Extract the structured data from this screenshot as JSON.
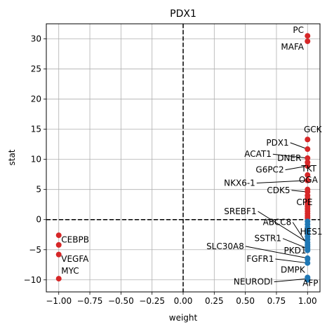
{
  "chart_data": {
    "type": "scatter",
    "title": "PDX1",
    "xlabel": "weight",
    "ylabel": "stat",
    "xlim": [
      -1.1,
      1.1
    ],
    "ylim": [
      -12,
      32.5
    ],
    "xticks": [
      -1.0,
      -0.75,
      -0.5,
      -0.25,
      0.0,
      0.25,
      0.5,
      0.75,
      1.0
    ],
    "xtick_labels": [
      "−1.00",
      "−0.75",
      "−0.50",
      "−0.25",
      "0.00",
      "0.25",
      "0.50",
      "0.75",
      "1.00"
    ],
    "yticks": [
      -10,
      -5,
      0,
      5,
      10,
      15,
      20,
      25,
      30
    ],
    "ytick_labels": [
      "−10",
      "−5",
      "0",
      "5",
      "10",
      "15",
      "20",
      "25",
      "30"
    ],
    "grid": true,
    "reference_lines": [
      {
        "axis": "x",
        "value": 0
      },
      {
        "axis": "y",
        "value": 0
      }
    ],
    "colors": {
      "positive": "#d62728",
      "negative": "#1f77b4"
    },
    "points": [
      {
        "x": 1.0,
        "y": 30.5,
        "label": "PC",
        "color": "positive"
      },
      {
        "x": 1.0,
        "y": 29.6,
        "label": "MAFA",
        "color": "positive"
      },
      {
        "x": 1.0,
        "y": 13.3,
        "label": "GCK",
        "color": "positive"
      },
      {
        "x": 1.0,
        "y": 11.7,
        "label": "PDX1",
        "color": "positive"
      },
      {
        "x": 1.0,
        "y": 10.2,
        "label": "ACAT1",
        "color": "positive"
      },
      {
        "x": 1.0,
        "y": 9.5,
        "label": "DNER",
        "color": "positive"
      },
      {
        "x": 1.0,
        "y": 8.9,
        "label": "G6PC2",
        "color": "positive"
      },
      {
        "x": 1.0,
        "y": 7.4,
        "label": "TKT",
        "color": "positive"
      },
      {
        "x": 1.0,
        "y": 6.5,
        "label": "NKX6-1",
        "color": "positive"
      },
      {
        "x": 1.0,
        "y": 5.0,
        "label": "OGA",
        "color": "positive"
      },
      {
        "x": 1.0,
        "y": 4.6,
        "label": "CDK5",
        "color": "positive"
      },
      {
        "x": 1.0,
        "y": 4.0,
        "label": "",
        "color": "positive"
      },
      {
        "x": 1.0,
        "y": 3.5,
        "label": "",
        "color": "positive"
      },
      {
        "x": 1.0,
        "y": 3.0,
        "label": "",
        "color": "positive"
      },
      {
        "x": 1.0,
        "y": 2.6,
        "label": "",
        "color": "positive"
      },
      {
        "x": 1.0,
        "y": 2.2,
        "label": "CPE",
        "color": "positive"
      },
      {
        "x": 1.0,
        "y": 1.8,
        "label": "",
        "color": "positive"
      },
      {
        "x": 1.0,
        "y": 1.4,
        "label": "",
        "color": "positive"
      },
      {
        "x": 1.0,
        "y": 1.0,
        "label": "",
        "color": "positive"
      },
      {
        "x": 1.0,
        "y": 0.6,
        "label": "",
        "color": "positive"
      },
      {
        "x": 1.0,
        "y": 0.3,
        "label": "",
        "color": "positive"
      },
      {
        "x": 1.0,
        "y": -0.3,
        "label": "",
        "color": "negative"
      },
      {
        "x": 1.0,
        "y": -0.8,
        "label": "",
        "color": "negative"
      },
      {
        "x": 1.0,
        "y": -1.3,
        "label": "",
        "color": "negative"
      },
      {
        "x": 1.0,
        "y": -1.8,
        "label": "",
        "color": "negative"
      },
      {
        "x": 1.0,
        "y": -2.3,
        "label": "",
        "color": "negative"
      },
      {
        "x": 1.0,
        "y": -2.8,
        "label": "",
        "color": "negative"
      },
      {
        "x": 1.0,
        "y": -3.3,
        "label": "",
        "color": "negative"
      },
      {
        "x": 1.0,
        "y": -3.8,
        "label": "SREBF1",
        "color": "negative"
      },
      {
        "x": 1.0,
        "y": -4.2,
        "label": "ABCC8",
        "color": "negative"
      },
      {
        "x": 1.0,
        "y": -4.5,
        "label": "HES1",
        "color": "negative"
      },
      {
        "x": 1.0,
        "y": -4.8,
        "label": "SSTR1",
        "color": "negative"
      },
      {
        "x": 1.0,
        "y": -5.1,
        "label": "",
        "color": "negative"
      },
      {
        "x": 1.0,
        "y": -6.4,
        "label": "SLC30A8",
        "color": "negative"
      },
      {
        "x": 1.0,
        "y": -6.6,
        "label": "PKD1",
        "color": "negative"
      },
      {
        "x": 1.0,
        "y": -7.2,
        "label": "FGFR1",
        "color": "negative"
      },
      {
        "x": 1.0,
        "y": -9.6,
        "label": "DMPK",
        "color": "negative"
      },
      {
        "x": 1.0,
        "y": -9.8,
        "label": "NEURODl",
        "color": "negative"
      },
      {
        "x": 1.0,
        "y": -10.0,
        "label": "AFP",
        "color": "negative"
      },
      {
        "x": -1.0,
        "y": -2.6,
        "label": "",
        "color": "positive"
      },
      {
        "x": -1.0,
        "y": -4.2,
        "label": "CEBPB",
        "color": "positive"
      },
      {
        "x": -1.0,
        "y": -5.8,
        "label": "VEGFA",
        "color": "positive"
      },
      {
        "x": -1.0,
        "y": -9.8,
        "label": "MYC",
        "color": "positive"
      }
    ],
    "annotations": [
      {
        "text": "PC",
        "x": 0.97,
        "y": 31.0,
        "ha": "end",
        "point_y": null
      },
      {
        "text": "MAFA",
        "x": 0.97,
        "y": 28.2,
        "ha": "end",
        "point_y": null
      },
      {
        "text": "GCK",
        "x": 0.97,
        "y": 14.5,
        "ha": "start",
        "point_y": null
      },
      {
        "text": "PDX1",
        "x": 0.85,
        "y": 12.3,
        "ha": "end",
        "point_y": 11.7
      },
      {
        "text": "ACAT1",
        "x": 0.71,
        "y": 10.4,
        "ha": "end",
        "point_y": 10.2
      },
      {
        "text": "DNER",
        "x": 0.95,
        "y": 9.7,
        "ha": "end",
        "point_y": null
      },
      {
        "text": "G6PC2",
        "x": 0.81,
        "y": 7.8,
        "ha": "end",
        "point_y": 8.9
      },
      {
        "text": "TKT",
        "x": 0.95,
        "y": 8.0,
        "ha": "start",
        "point_y": null
      },
      {
        "text": "NKX6-1",
        "x": 0.58,
        "y": 5.6,
        "ha": "end",
        "point_y": 6.5
      },
      {
        "text": "OGA",
        "x": 0.93,
        "y": 6.1,
        "ha": "start",
        "point_y": null
      },
      {
        "text": "CDK5",
        "x": 0.86,
        "y": 4.4,
        "ha": "end",
        "point_y": 4.6
      },
      {
        "text": "CPE",
        "x": 0.91,
        "y": 2.4,
        "ha": "start",
        "point_y": null
      },
      {
        "text": "SREBF1",
        "x": 0.59,
        "y": 0.9,
        "ha": "end",
        "point_y": -3.8
      },
      {
        "text": "ABCC8",
        "x": 0.87,
        "y": -0.9,
        "ha": "end",
        "point_y": -4.2
      },
      {
        "text": "HES1",
        "x": 0.94,
        "y": -2.5,
        "ha": "start",
        "point_y": null
      },
      {
        "text": "SSTR1",
        "x": 0.79,
        "y": -3.6,
        "ha": "end",
        "point_y": -4.8
      },
      {
        "text": "SLC30A8",
        "x": 0.49,
        "y": -4.9,
        "ha": "end",
        "point_y": -6.4
      },
      {
        "text": "PKD1",
        "x": 0.99,
        "y": -5.6,
        "ha": "end",
        "point_y": null
      },
      {
        "text": "FGFR1",
        "x": 0.73,
        "y": -7.0,
        "ha": "end",
        "point_y": -7.2
      },
      {
        "text": "DMPK",
        "x": 0.98,
        "y": -8.8,
        "ha": "end",
        "point_y": null
      },
      {
        "text": "NEURODl",
        "x": 0.72,
        "y": -10.8,
        "ha": "end",
        "point_y": -9.8
      },
      {
        "text": "AFP",
        "x": 0.96,
        "y": -11.0,
        "ha": "start",
        "point_y": null
      },
      {
        "text": "CEBPB",
        "x": -0.98,
        "y": -3.8,
        "ha": "start",
        "point_y": null
      },
      {
        "text": "VEGFA",
        "x": -0.98,
        "y": -7.0,
        "ha": "start",
        "point_y": null
      },
      {
        "text": "MYC",
        "x": -0.98,
        "y": -9.0,
        "ha": "start",
        "point_y": null
      }
    ]
  }
}
